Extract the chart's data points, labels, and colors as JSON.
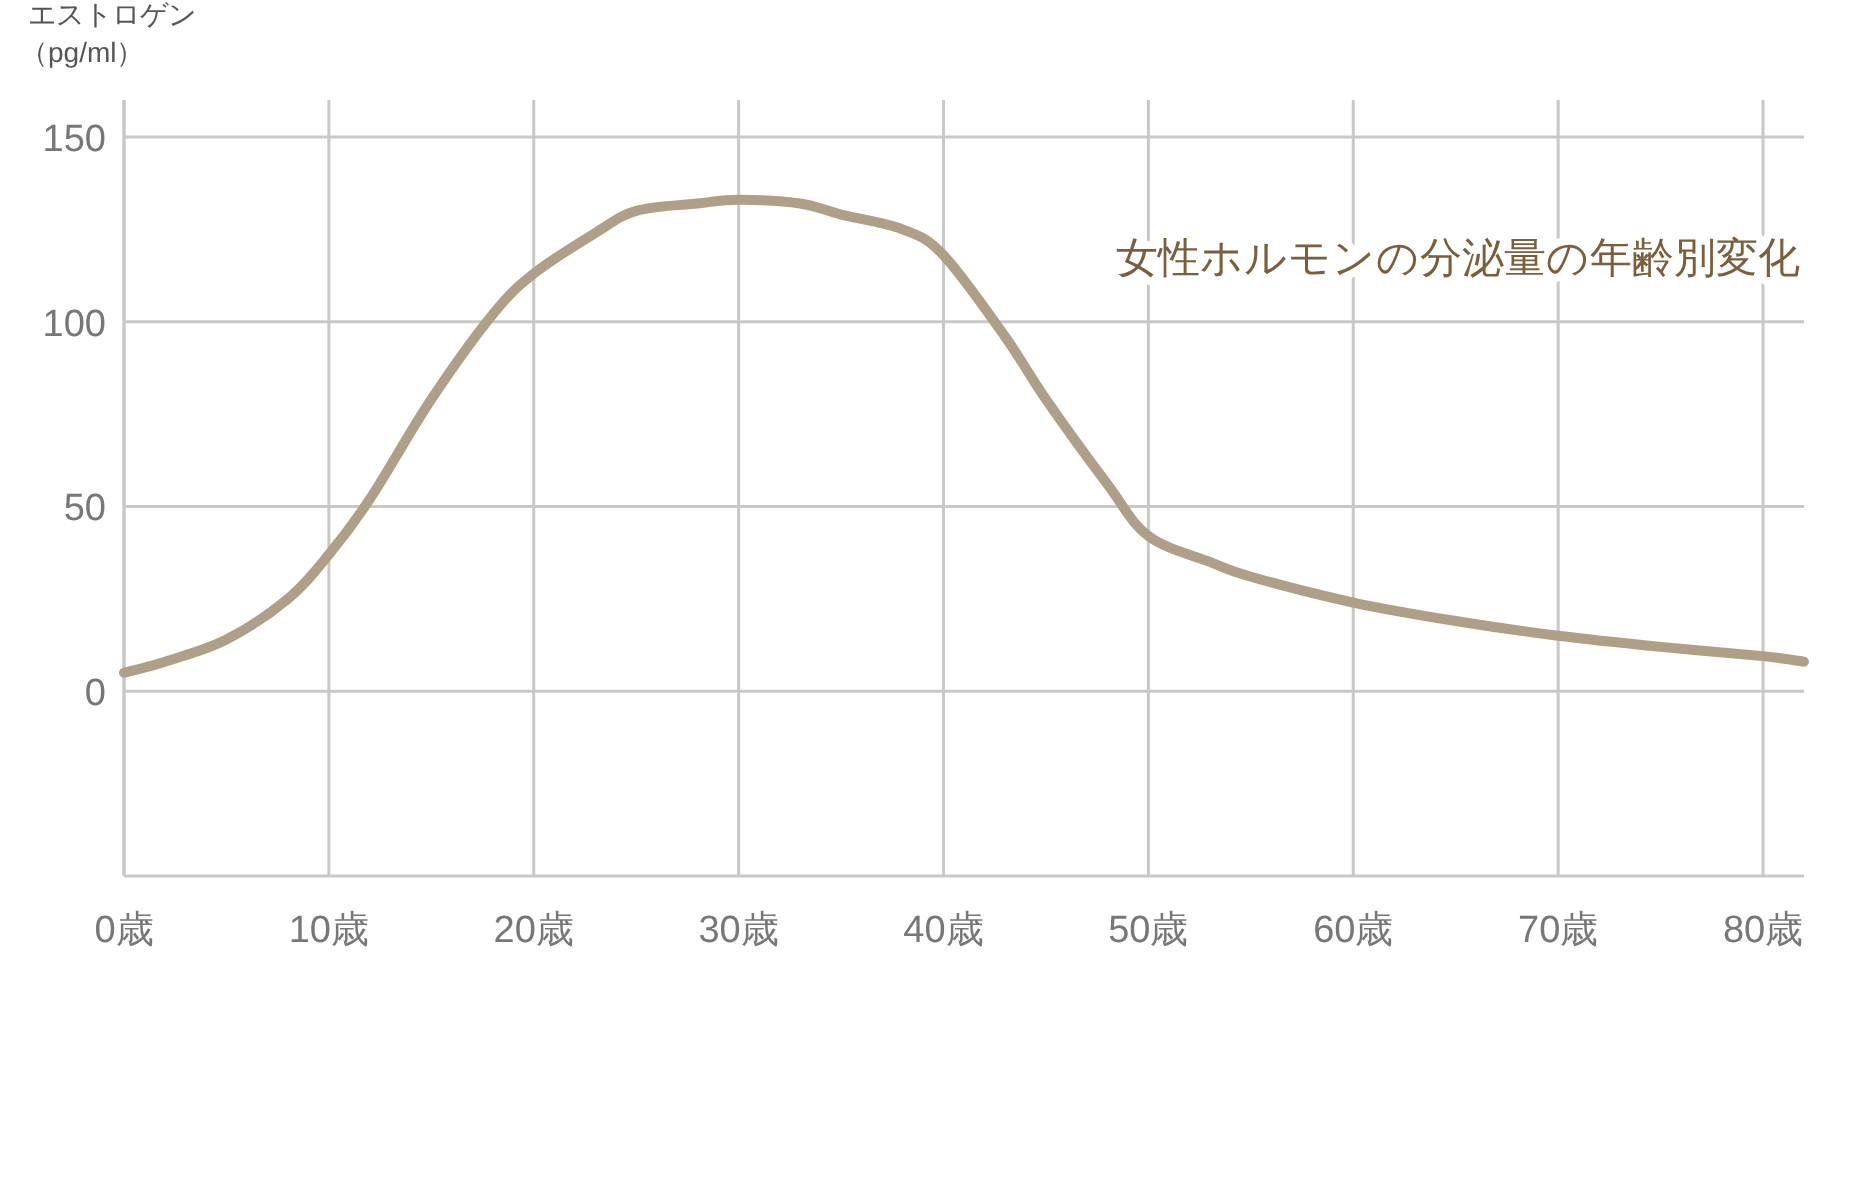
{
  "chart_data": {
    "type": "line",
    "title": "女性ホルモンの分泌量の年齢別変化",
    "ylabel": "エストロゲン（pg/ml）",
    "x": [
      0,
      2,
      5,
      8,
      10,
      12,
      15,
      18,
      20,
      23,
      25,
      28,
      30,
      33,
      35,
      38,
      40,
      43,
      45,
      48,
      50,
      53,
      55,
      60,
      65,
      70,
      75,
      80,
      82
    ],
    "series": [
      {
        "color": "#b09f87",
        "values": [
          5,
          8,
          14,
          25,
          37,
          52,
          79,
          102,
          113,
          124,
          130,
          132,
          133,
          132,
          129,
          125,
          118,
          96,
          79,
          56,
          42,
          35,
          31,
          24,
          19,
          15,
          12,
          9.5,
          8
        ]
      }
    ],
    "xlim": [
      0,
      82
    ],
    "ylim": [
      -50,
      160
    ],
    "xticks": [
      {
        "value": 0,
        "label": "0歳"
      },
      {
        "value": 10,
        "label": "10歳"
      },
      {
        "value": 20,
        "label": "20歳"
      },
      {
        "value": 30,
        "label": "30歳"
      },
      {
        "value": 40,
        "label": "40歳"
      },
      {
        "value": 50,
        "label": "50歳"
      },
      {
        "value": 60,
        "label": "60歳"
      },
      {
        "value": 70,
        "label": "70歳"
      },
      {
        "value": 80,
        "label": "80歳"
      }
    ],
    "yticks": [
      0,
      50,
      100,
      150
    ],
    "grid": true,
    "marker": "none",
    "line_style": "solid"
  }
}
